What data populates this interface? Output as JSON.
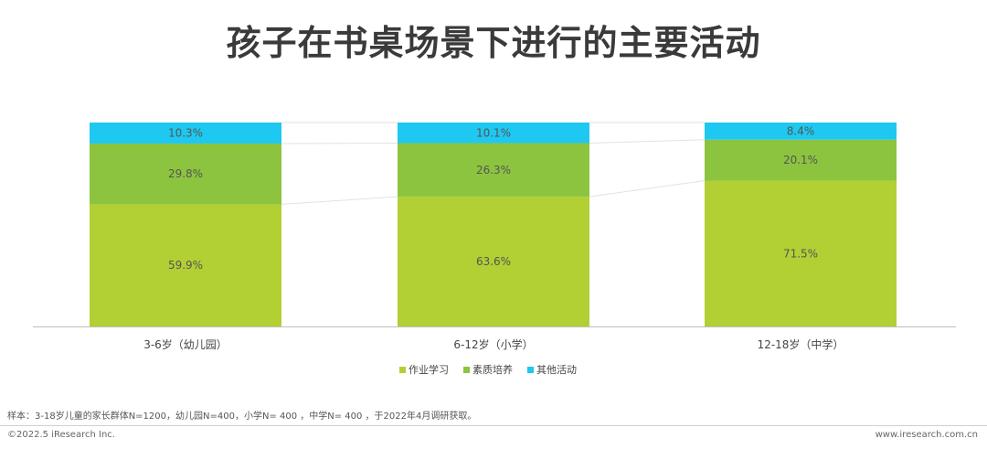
{
  "title": "孩子在书桌场景下进行的主要活动",
  "chart_data": {
    "type": "bar",
    "stacked": true,
    "percent": true,
    "categories": [
      "3-6岁（幼儿园）",
      "6-12岁（小学）",
      "12-18岁（中学）"
    ],
    "series": [
      {
        "name": "作业学习",
        "color": "#b2cf34",
        "values": [
          59.9,
          63.6,
          71.5
        ]
      },
      {
        "name": "素质培养",
        "color": "#8cc43f",
        "values": [
          29.8,
          26.3,
          20.1
        ]
      },
      {
        "name": "其他活动",
        "color": "#1ec8f0",
        "values": [
          10.3,
          10.1,
          8.4
        ]
      }
    ],
    "value_suffix": "%",
    "ylim": [
      0,
      100
    ],
    "legend_position": "bottom",
    "grid": false
  },
  "footnote": "样本：3-18岁儿童的家长群体N=1200，幼儿园N=400，小学N= 400 ，中学N= 400 ，于2022年4月调研获取。",
  "footer": {
    "copyright": "©2022.5 iResearch Inc.",
    "website": "www.iresearch.com.cn"
  }
}
